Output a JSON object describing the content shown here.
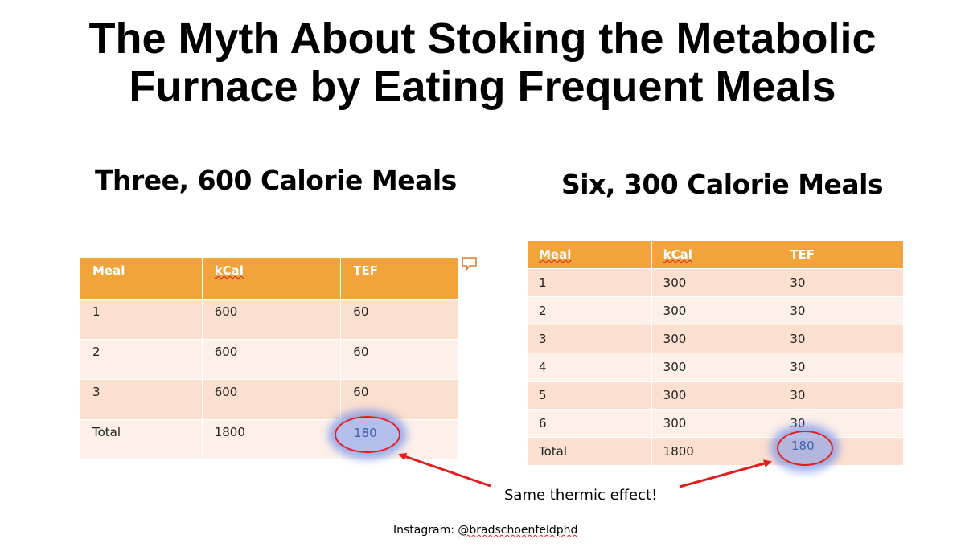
{
  "title": {
    "line1": "The Myth About Stoking the Metabolic",
    "line2": "Furnace by Eating Frequent Meals"
  },
  "left": {
    "heading": "Three, 600 Calorie Meals",
    "columns": [
      "Meal",
      "kCal",
      "TEF"
    ],
    "rows": [
      [
        "1",
        "600",
        "60"
      ],
      [
        "2",
        "600",
        "60"
      ],
      [
        "3",
        "600",
        "60"
      ]
    ],
    "total": [
      "Total",
      "1800",
      "180"
    ]
  },
  "right": {
    "heading": "Six, 300 Calorie Meals",
    "columns": [
      "Meal",
      "kCal",
      "TEF"
    ],
    "rows": [
      [
        "1",
        "300",
        "30"
      ],
      [
        "2",
        "300",
        "30"
      ],
      [
        "3",
        "300",
        "30"
      ],
      [
        "4",
        "300",
        "30"
      ],
      [
        "5",
        "300",
        "30"
      ],
      [
        "6",
        "300",
        "30"
      ]
    ],
    "total": [
      "Total",
      "1800",
      "180"
    ]
  },
  "callout": "Same thermic effect!",
  "credit": {
    "prefix": "Instagram: ",
    "handle": "@bradschoenfeldphd"
  },
  "colors": {
    "header": "#f0a43a",
    "row_dark": "#fbe0cf",
    "row_light": "#fdf0e9",
    "highlight_ring": "#e02020",
    "arrow": "#e02020"
  },
  "icons": [
    "comment-icon"
  ]
}
